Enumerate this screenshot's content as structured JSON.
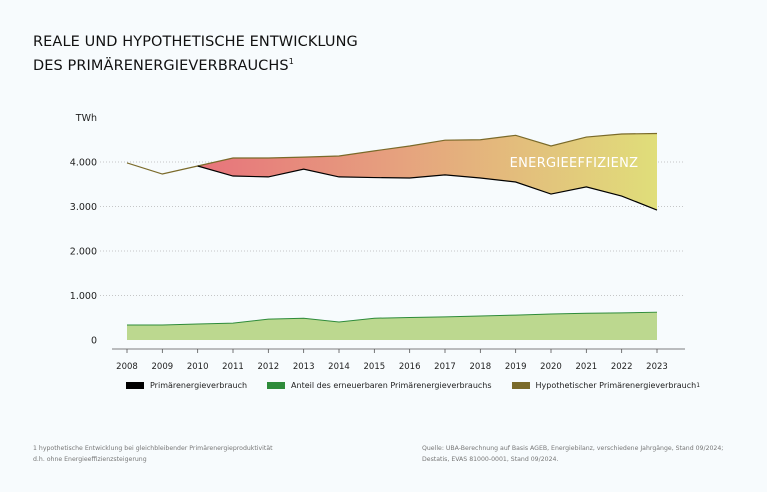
{
  "title_line1": "REALE UND HYPOTHETISCHE ENTWICKLUNG",
  "title_line2": "DES PRIMÄRENERGIEVERBRAUCHS",
  "title_sup": "1",
  "chart_data": {
    "type": "area",
    "ylabel": "TWh",
    "ylim": [
      0,
      5000
    ],
    "yticks": [
      0,
      1000,
      2000,
      3000,
      4000
    ],
    "ytick_labels": [
      "0",
      "1.000",
      "2.000",
      "3.000",
      "4.000"
    ],
    "categories": [
      "2008",
      "2009",
      "2010",
      "2011",
      "2012",
      "2013",
      "2014",
      "2015",
      "2016",
      "2017",
      "2018",
      "2019",
      "2020",
      "2021",
      "2022",
      "2023"
    ],
    "series": [
      {
        "name": "Primärenergieverbrauch",
        "color": "#000000",
        "values": [
          3980,
          3730,
          3910,
          3685,
          3665,
          3840,
          3665,
          3650,
          3640,
          3710,
          3640,
          3550,
          3280,
          3440,
          3235,
          2920
        ]
      },
      {
        "name": "Anteil des erneuerbaren Primärenergieverbrauchs",
        "color": "#2e8b3a",
        "fill": "#bcd88f",
        "values": [
          337,
          337,
          360,
          380,
          470,
          490,
          405,
          490,
          505,
          520,
          540,
          560,
          585,
          600,
          610,
          625
        ]
      },
      {
        "name": "Hypothetischer Primärenergieverbrauch",
        "name_sup": "1",
        "color": "#7a6a2a",
        "values": [
          3980,
          3730,
          3910,
          4090,
          4090,
          4110,
          4135,
          4250,
          4360,
          4490,
          4500,
          4600,
          4360,
          4560,
          4630,
          4640
        ]
      }
    ],
    "annotation": "ENERGIEEFFIZIENZ",
    "gradient": [
      "#e8637a",
      "#e6a07e",
      "#e0de7a"
    ],
    "grid": "dotted horizontal",
    "legend_position": "bottom"
  },
  "footnote_left": [
    "1 hypothetische Entwicklung bei gleichbleibender Primärenergieproduktivität",
    "d.h. ohne Energieeffizienzsteigerung"
  ],
  "footnote_right": [
    "Quelle: UBA-Berechnung auf Basis AGEB, Energiebilanz, verschiedene Jahrgänge, Stand 09/2024;",
    "Destatis, EVAS 81000-0001, Stand 09/2024."
  ]
}
